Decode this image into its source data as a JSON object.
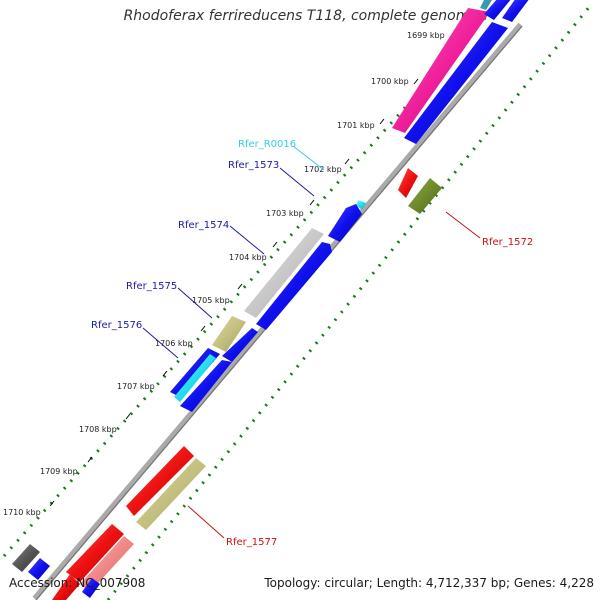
{
  "title": "Rhodoferax ferrireducens T118, complete genome",
  "footer": {
    "accession": "Accession: NC_007908",
    "topology": "Topology: circular; Length: 4,712,337 bp; Genes: 4,228"
  },
  "ticks": [
    {
      "label": "1699 kbp"
    },
    {
      "label": "1700 kbp"
    },
    {
      "label": "1701 kbp"
    },
    {
      "label": "1702 kbp"
    },
    {
      "label": "1703 kbp"
    },
    {
      "label": "1704 kbp"
    },
    {
      "label": "1705 kbp"
    },
    {
      "label": "1706 kbp"
    },
    {
      "label": "1707 kbp"
    },
    {
      "label": "1708 kbp"
    },
    {
      "label": "1709 kbp"
    },
    {
      "label": "1710 kbp"
    }
  ],
  "gene_labels": [
    {
      "name": "Rfer_R0016",
      "color": "#33ccee"
    },
    {
      "name": "Rfer_1573",
      "color": "#1a1aa8"
    },
    {
      "name": "Rfer_1574",
      "color": "#1a1aa8"
    },
    {
      "name": "Rfer_1575",
      "color": "#1a1aa8"
    },
    {
      "name": "Rfer_1576",
      "color": "#1a1aa8"
    },
    {
      "name": "Rfer_1572",
      "color": "#cc1111"
    },
    {
      "name": "Rfer_1577",
      "color": "#cc1111"
    }
  ],
  "colors": {
    "cds_forward": "#1010ee",
    "cds_reverse": "#ee1111",
    "rna": "#22ddee",
    "gray": "#c8c8c8",
    "olive": "#c4c080",
    "dark_olive": "#6f8a2a",
    "pink": "#f0209a",
    "salmon": "#f08888",
    "dark_gray": "#555555",
    "backbone": "#999999",
    "tick_green": "#1a7a1a"
  }
}
